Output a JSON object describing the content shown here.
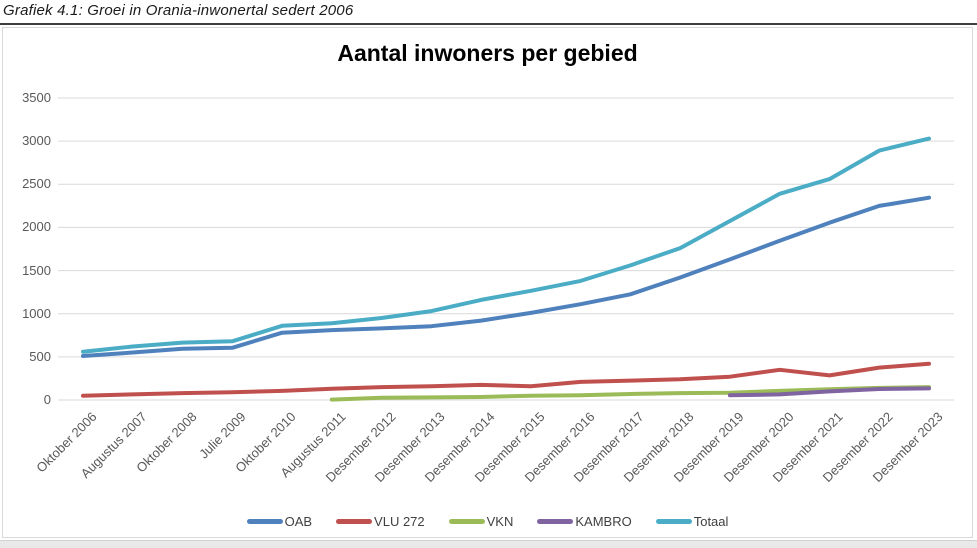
{
  "caption": "Grafiek 4.1: Groei in Orania-inwonertal sedert 2006",
  "colors": {
    "gridline": "#d9d9d9",
    "axis_text": "#595959",
    "chart_border": "#d9d9d9",
    "oab_blue": "#4F81BD",
    "vlu_red": "#C0504D",
    "vkn_green": "#9BBB59",
    "kambro_purple": "#8064A2",
    "totaal_cyan": "#4BACC6"
  },
  "chart_data": {
    "type": "line",
    "title": "Aantal inwoners per gebied",
    "xlabel": "",
    "ylabel": "",
    "grid": true,
    "legend_position": "bottom",
    "ylim": [
      0,
      3500
    ],
    "ytick_step": 500,
    "categories": [
      "Oktober 2006",
      "Augustus 2007",
      "Oktober 2008",
      "Julie 2009",
      "Oktober 2010",
      "Augustus 2011",
      "Desember 2012",
      "Desember 2013",
      "Desember 2014",
      "Desember 2015",
      "Desember 2016",
      "Desember 2017",
      "Desember 2018",
      "Desember 2019",
      "Desember 2020",
      "Desember 2021",
      "Desember 2022",
      "Desember 2023"
    ],
    "series": [
      {
        "name": "OAB",
        "color": "#4F81BD",
        "values": [
          510,
          550,
          595,
          605,
          780,
          810,
          830,
          855,
          920,
          1010,
          1110,
          1225,
          1420,
          1630,
          1845,
          2055,
          2250,
          2345
        ]
      },
      {
        "name": "VLU 272",
        "color": "#C0504D",
        "values": [
          50,
          65,
          80,
          90,
          105,
          130,
          150,
          160,
          175,
          160,
          210,
          225,
          240,
          270,
          350,
          285,
          375,
          420
        ]
      },
      {
        "name": "VKN",
        "color": "#9BBB59",
        "values": [
          null,
          null,
          null,
          null,
          null,
          5,
          25,
          30,
          35,
          50,
          55,
          70,
          80,
          85,
          105,
          125,
          140,
          150
        ]
      },
      {
        "name": "KAMBRO",
        "color": "#8064A2",
        "values": [
          null,
          null,
          null,
          null,
          null,
          null,
          null,
          null,
          null,
          null,
          null,
          null,
          null,
          55,
          65,
          100,
          127,
          135
        ]
      },
      {
        "name": "Totaal",
        "color": "#4BACC6",
        "values": [
          560,
          620,
          665,
          680,
          860,
          890,
          950,
          1030,
          1160,
          1265,
          1380,
          1560,
          1760,
          2075,
          2390,
          2560,
          2890,
          3030
        ]
      }
    ]
  }
}
